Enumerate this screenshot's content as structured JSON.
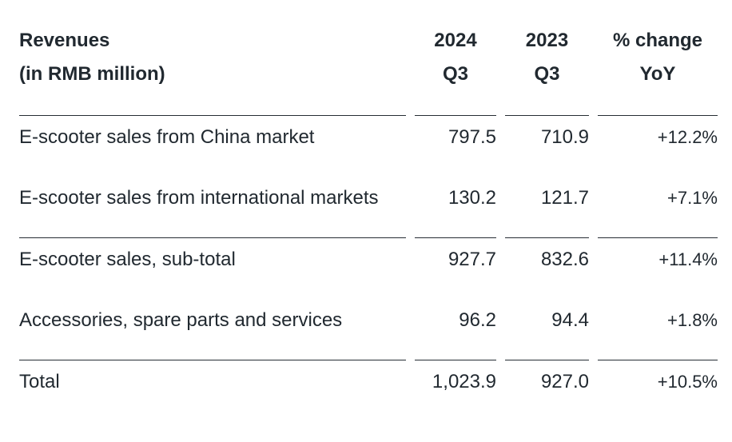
{
  "colors": {
    "text": "#212930",
    "rule": "#262d34",
    "background": "#ffffff"
  },
  "header": {
    "revenues": {
      "line1": "Revenues",
      "line2": "(in RMB million)"
    },
    "y2024": {
      "line1": "2024",
      "line2": "Q3"
    },
    "y2023": {
      "line1": "2023",
      "line2": "Q3"
    },
    "change": {
      "line1": "% change",
      "line2": "YoY"
    }
  },
  "chart_data": {
    "type": "table",
    "title": "Revenues (in RMB million)",
    "columns": [
      "Revenues (in RMB million)",
      "2024 Q3",
      "2023 Q3",
      "% change YoY"
    ],
    "rows": [
      {
        "label": "E-scooter sales from China market",
        "values": [
          "797.5",
          "710.9",
          "+12.2%"
        ],
        "numeric": [
          797.5,
          710.9,
          12.2
        ]
      },
      {
        "label": "E-scooter sales from international markets",
        "values": [
          "130.2",
          "121.7",
          "+7.1%"
        ],
        "numeric": [
          130.2,
          121.7,
          7.1
        ]
      },
      {
        "label": "E-scooter sales, sub-total",
        "values": [
          "927.7",
          "832.6",
          "+11.4%"
        ],
        "numeric": [
          927.7,
          832.6,
          11.4
        ]
      },
      {
        "label": "Accessories, spare parts and services",
        "values": [
          "96.2",
          "94.4",
          "+1.8%"
        ],
        "numeric": [
          96.2,
          94.4,
          1.8
        ]
      },
      {
        "label": "Total",
        "values": [
          "1,023.9",
          "927.0",
          "+10.5%"
        ],
        "numeric": [
          1023.9,
          927.0,
          10.5
        ]
      }
    ]
  }
}
